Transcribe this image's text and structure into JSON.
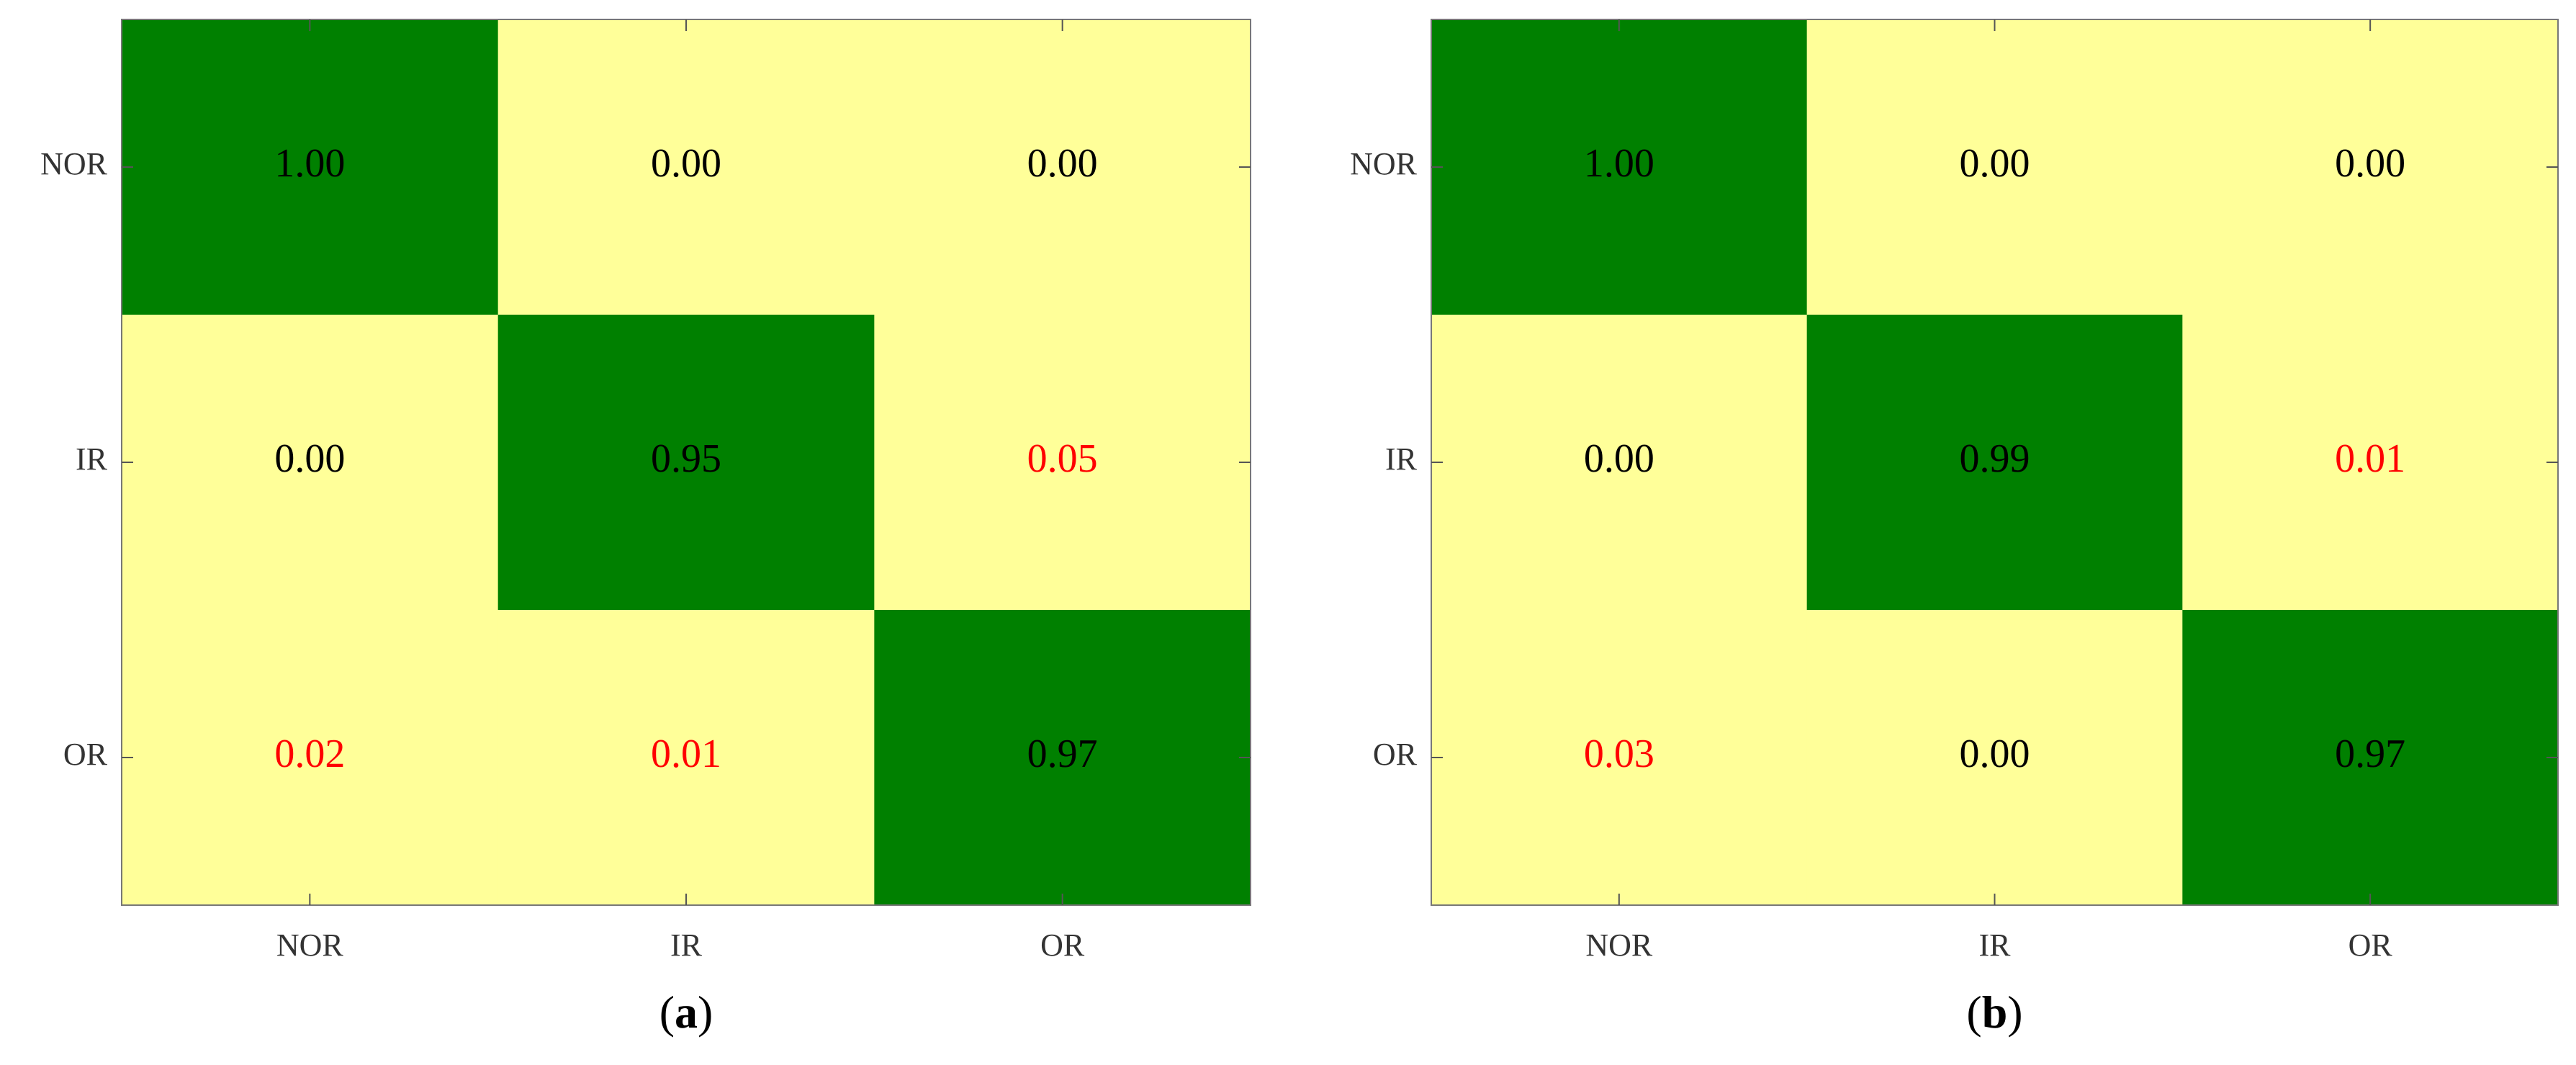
{
  "chart_data": [
    {
      "type": "heatmap",
      "caption": "(a)",
      "x_categories": [
        "NOR",
        "IR",
        "OR"
      ],
      "y_categories": [
        "NOR",
        "IR",
        "OR"
      ],
      "values": [
        [
          1.0,
          0.0,
          0.0
        ],
        [
          0.0,
          0.95,
          0.05
        ],
        [
          0.02,
          0.01,
          0.97
        ]
      ],
      "value_labels": [
        [
          "1.00",
          "0.00",
          "0.00"
        ],
        [
          "0.00",
          "0.95",
          "0.05"
        ],
        [
          "0.02",
          "0.01",
          "0.97"
        ]
      ],
      "diagonal_color": "#008000",
      "off_diagonal_color": "#ffff99",
      "text_color": "#000000",
      "error_text_color": "#ff0000"
    },
    {
      "type": "heatmap",
      "caption": "(b)",
      "x_categories": [
        "NOR",
        "IR",
        "OR"
      ],
      "y_categories": [
        "NOR",
        "IR",
        "OR"
      ],
      "values": [
        [
          1.0,
          0.0,
          0.0
        ],
        [
          0.0,
          0.99,
          0.01
        ],
        [
          0.03,
          0.0,
          0.97
        ]
      ],
      "value_labels": [
        [
          "1.00",
          "0.00",
          "0.00"
        ],
        [
          "0.00",
          "0.99",
          "0.01"
        ],
        [
          "0.03",
          "0.00",
          "0.97"
        ]
      ],
      "diagonal_color": "#008000",
      "off_diagonal_color": "#ffff99",
      "text_color": "#000000",
      "error_text_color": "#ff0000"
    }
  ]
}
